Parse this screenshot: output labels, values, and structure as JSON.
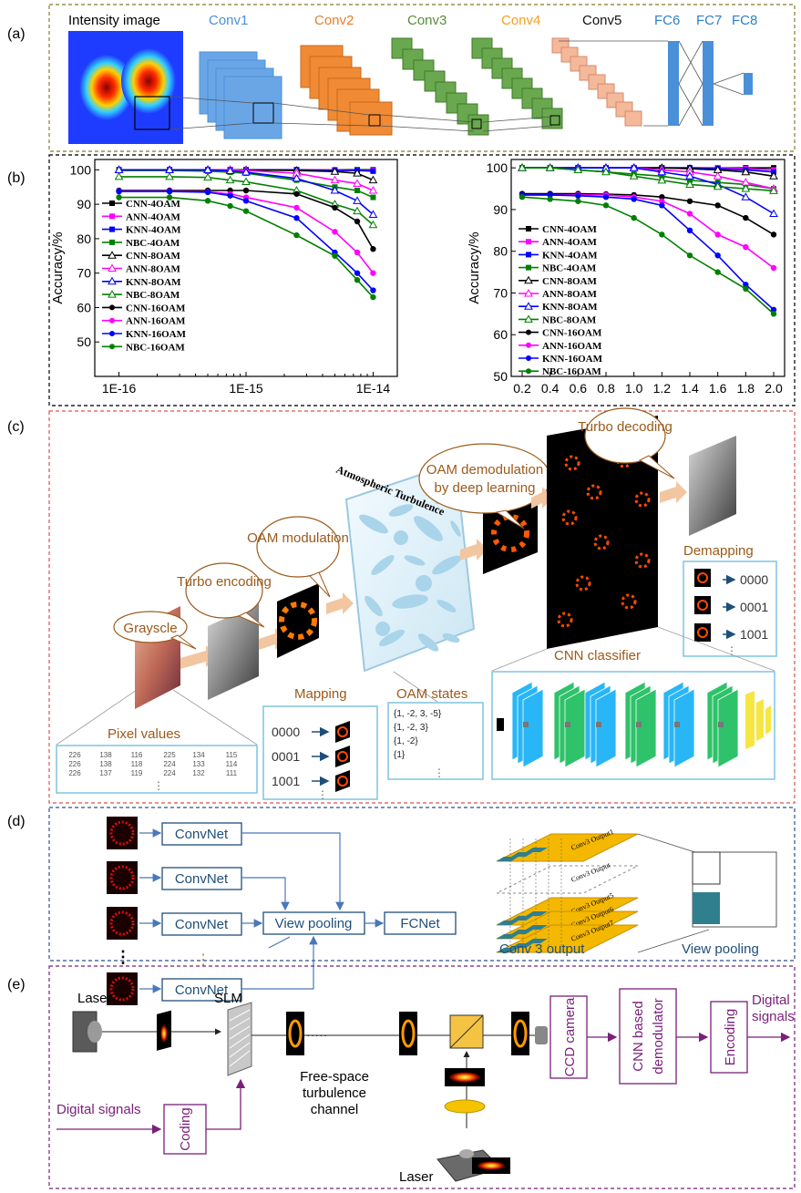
{
  "panel_labels": {
    "a": "(a)",
    "b": "(b)",
    "c": "(c)",
    "d": "(d)",
    "e": "(e)"
  },
  "a": {
    "intensity_label": "Intensity image",
    "layers": [
      {
        "label": "Conv1",
        "color": "#4a90d9"
      },
      {
        "label": "Conv2",
        "color": "#e87d2a"
      },
      {
        "label": "Conv3",
        "color": "#5a8c3a"
      },
      {
        "label": "Conv4",
        "color": "#f0a020"
      },
      {
        "label": "Conv5",
        "color": "#111111"
      },
      {
        "label": "FC6",
        "color": "#2f7fc8"
      },
      {
        "label": "FC7",
        "color": "#2f7fc8"
      },
      {
        "label": "FC8",
        "color": "#2f7fc8"
      }
    ]
  },
  "chart_data": [
    {
      "type": "line",
      "ylabel": "Accuracy/%",
      "xscale": "log",
      "x": [
        1e-16,
        2.5e-16,
        5e-16,
        7.5e-16,
        1e-15,
        2.5e-15,
        5e-15,
        7.5e-15,
        1e-14
      ],
      "x_ticks": [
        "1E-16",
        "1E-15",
        "1E-14"
      ],
      "ylim": [
        40,
        103
      ],
      "y_ticks": [
        "50",
        "60",
        "70",
        "80",
        "90",
        "100"
      ],
      "series": [
        {
          "name": "CNN-4OAM",
          "color": "#000000",
          "marker": "square",
          "values": [
            100,
            100,
            100,
            100,
            100,
            100,
            100,
            100,
            100
          ]
        },
        {
          "name": "ANN-4OAM",
          "color": "#ff00ff",
          "marker": "square",
          "values": [
            100,
            100,
            100,
            100,
            100,
            100,
            100,
            99.8,
            99.8
          ]
        },
        {
          "name": "KNN-4OAM",
          "color": "#0000ff",
          "marker": "square",
          "values": [
            100,
            100,
            100,
            100,
            100,
            100,
            99.8,
            99.8,
            99.6
          ]
        },
        {
          "name": "NBC-4OAM",
          "color": "#008000",
          "marker": "square",
          "values": [
            99.8,
            99.8,
            99.6,
            99.3,
            99,
            97,
            95,
            94,
            92
          ]
        },
        {
          "name": "CNN-8OAM",
          "color": "#000000",
          "marker": "triangle",
          "values": [
            100,
            100,
            100,
            100,
            100,
            99.8,
            99.5,
            99,
            97
          ]
        },
        {
          "name": "ANN-8OAM",
          "color": "#ff00ff",
          "marker": "triangle",
          "values": [
            100,
            100,
            100,
            100,
            99.8,
            99,
            97,
            96,
            94
          ]
        },
        {
          "name": "KNN-8OAM",
          "color": "#0000ff",
          "marker": "triangle",
          "values": [
            100,
            100,
            100,
            99.7,
            99.3,
            97.5,
            94,
            91,
            87
          ]
        },
        {
          "name": "NBC-8OAM",
          "color": "#008000",
          "marker": "triangle",
          "values": [
            98,
            98,
            97.8,
            97,
            96.5,
            94,
            90,
            88,
            84
          ]
        },
        {
          "name": "CNN-16OAM",
          "color": "#000000",
          "marker": "circle",
          "values": [
            94,
            94,
            94,
            94,
            94,
            93,
            89,
            85,
            77
          ]
        },
        {
          "name": "ANN-16OAM",
          "color": "#ff00ff",
          "marker": "circle",
          "values": [
            93.8,
            93.8,
            93.6,
            93,
            92,
            89,
            82,
            76,
            70
          ]
        },
        {
          "name": "KNN-16OAM",
          "color": "#0000ff",
          "marker": "circle",
          "values": [
            93.7,
            93.7,
            93.5,
            92.5,
            91,
            86,
            76,
            70,
            65
          ]
        },
        {
          "name": "NBC-16OAM",
          "color": "#008000",
          "marker": "circle",
          "values": [
            92,
            92,
            91,
            89.5,
            88,
            81,
            75,
            68,
            63
          ]
        }
      ]
    },
    {
      "type": "line",
      "ylabel": "Accuracy/%",
      "x": [
        0.2,
        0.4,
        0.6,
        0.8,
        1.0,
        1.2,
        1.4,
        1.6,
        1.8,
        2.0
      ],
      "x_ticks": [
        "0.2",
        "0.4",
        "0.6",
        "0.8",
        "1.0",
        "1.2",
        "1.4",
        "1.6",
        "1.8",
        "2.0"
      ],
      "ylim": [
        50,
        102
      ],
      "y_ticks": [
        "50",
        "60",
        "70",
        "80",
        "90",
        "100"
      ],
      "series": [
        {
          "name": "CNN-4OAM",
          "color": "#000000",
          "marker": "square",
          "values": [
            100,
            100,
            100,
            100,
            100,
            100,
            100,
            100,
            100,
            100
          ]
        },
        {
          "name": "ANN-4OAM",
          "color": "#ff00ff",
          "marker": "square",
          "values": [
            100,
            100,
            100,
            100,
            100,
            100,
            100,
            100,
            99.8,
            99.5
          ]
        },
        {
          "name": "KNN-4OAM",
          "color": "#0000ff",
          "marker": "square",
          "values": [
            100,
            100,
            100,
            100,
            100,
            100,
            100,
            99.8,
            99.5,
            99
          ]
        },
        {
          "name": "NBC-4OAM",
          "color": "#008000",
          "marker": "square",
          "values": [
            100,
            100,
            99.5,
            99,
            98.5,
            98,
            97,
            96.5,
            96,
            95
          ]
        },
        {
          "name": "CNN-8OAM",
          "color": "#000000",
          "marker": "triangle",
          "values": [
            100,
            100,
            100,
            100,
            100,
            100,
            99.8,
            99.5,
            99,
            98
          ]
        },
        {
          "name": "ANN-8OAM",
          "color": "#ff00ff",
          "marker": "triangle",
          "values": [
            100,
            100,
            100,
            100,
            100,
            99.5,
            99,
            98,
            96.5,
            95
          ]
        },
        {
          "name": "KNN-8OAM",
          "color": "#0000ff",
          "marker": "triangle",
          "values": [
            100,
            100,
            100,
            100,
            100,
            99,
            98,
            96,
            93,
            89
          ]
        },
        {
          "name": "NBC-8OAM",
          "color": "#008000",
          "marker": "triangle",
          "values": [
            100,
            100,
            99.5,
            99,
            98,
            97,
            96,
            95.5,
            95,
            94.5
          ]
        },
        {
          "name": "CNN-16OAM",
          "color": "#000000",
          "marker": "circle",
          "values": [
            93.8,
            93.8,
            93.8,
            93.7,
            93.5,
            93,
            92,
            91,
            88,
            84
          ]
        },
        {
          "name": "ANN-16OAM",
          "color": "#ff00ff",
          "marker": "circle",
          "values": [
            93.5,
            93.5,
            93.5,
            93.5,
            93,
            92,
            89,
            84,
            81,
            76
          ]
        },
        {
          "name": "KNN-16OAM",
          "color": "#0000ff",
          "marker": "circle",
          "values": [
            93.5,
            93.5,
            93.3,
            93,
            92.5,
            91,
            85,
            79,
            72,
            66
          ]
        },
        {
          "name": "NBC-16OAM",
          "color": "#008000",
          "marker": "circle",
          "values": [
            93,
            92.5,
            92,
            91,
            88,
            84,
            79,
            75,
            71,
            65
          ]
        }
      ]
    }
  ],
  "c": {
    "grayscle": "Grayscle",
    "turbo_encoding": "Turbo encoding",
    "oam_modulation": "OAM modulation",
    "atmospheric": "Atmospheric Turbulence",
    "oam_demod": "OAM demodulation by deep learning",
    "turbo_decoding": "Turbo decoding",
    "demapping": "Demapping",
    "demapping_codes": [
      "0000",
      "0001",
      "1001"
    ],
    "cnn_classifier": "CNN classifier",
    "pixel_values": "Pixel values",
    "pixel_rows": [
      [
        "226",
        "138",
        "116",
        "225",
        "134",
        "115"
      ],
      [
        "226",
        "138",
        "118",
        "224",
        "133",
        "114"
      ],
      [
        "226",
        "137",
        "119",
        "224",
        "132",
        "111"
      ]
    ],
    "mapping": "Mapping",
    "mapping_codes": [
      "0000",
      "0001",
      "1001"
    ],
    "oam_states": "OAM states",
    "oam_state_lines": [
      "{1,  -2,  3,  -5}",
      "{1,  -2,  3}",
      "{1,  -2}",
      "{1}"
    ],
    "ellipsis": "⋮"
  },
  "d": {
    "convnet": "ConvNet",
    "view_pooling": "View pooling",
    "fcnet": "FCNet",
    "conv3_output": "Conv 3 output",
    "view_pooling_caption": "View pooling",
    "stack_labels": [
      "Conv3 Output1",
      "Conv3 Output",
      "Conv3 Output5",
      "Conv3 Output6",
      "Conv3 Output7"
    ],
    "dots": "⋮"
  },
  "e": {
    "laser_top": "Laser",
    "slm": "SLM",
    "digital_signals_in": "Digital signals",
    "coding": "Coding",
    "channel": [
      "Free-space",
      "turbulence",
      "channel"
    ],
    "laser_bottom": "Laser",
    "ccd": "CCD camera",
    "cnn_demod": [
      "CNN based",
      "demodulator"
    ],
    "encoding": "Encoding",
    "digital_signals_out": [
      "Digital",
      "signals"
    ],
    "dots": "·····"
  },
  "colors": {
    "olive_border": "#9a8f4a",
    "black_border": "#222222",
    "red_border": "#d9534f",
    "blue_border": "#2b4f8f",
    "purple_border": "#7a1f7a",
    "brown_text": "#9b5a1a",
    "navy": "#1f4e79"
  }
}
